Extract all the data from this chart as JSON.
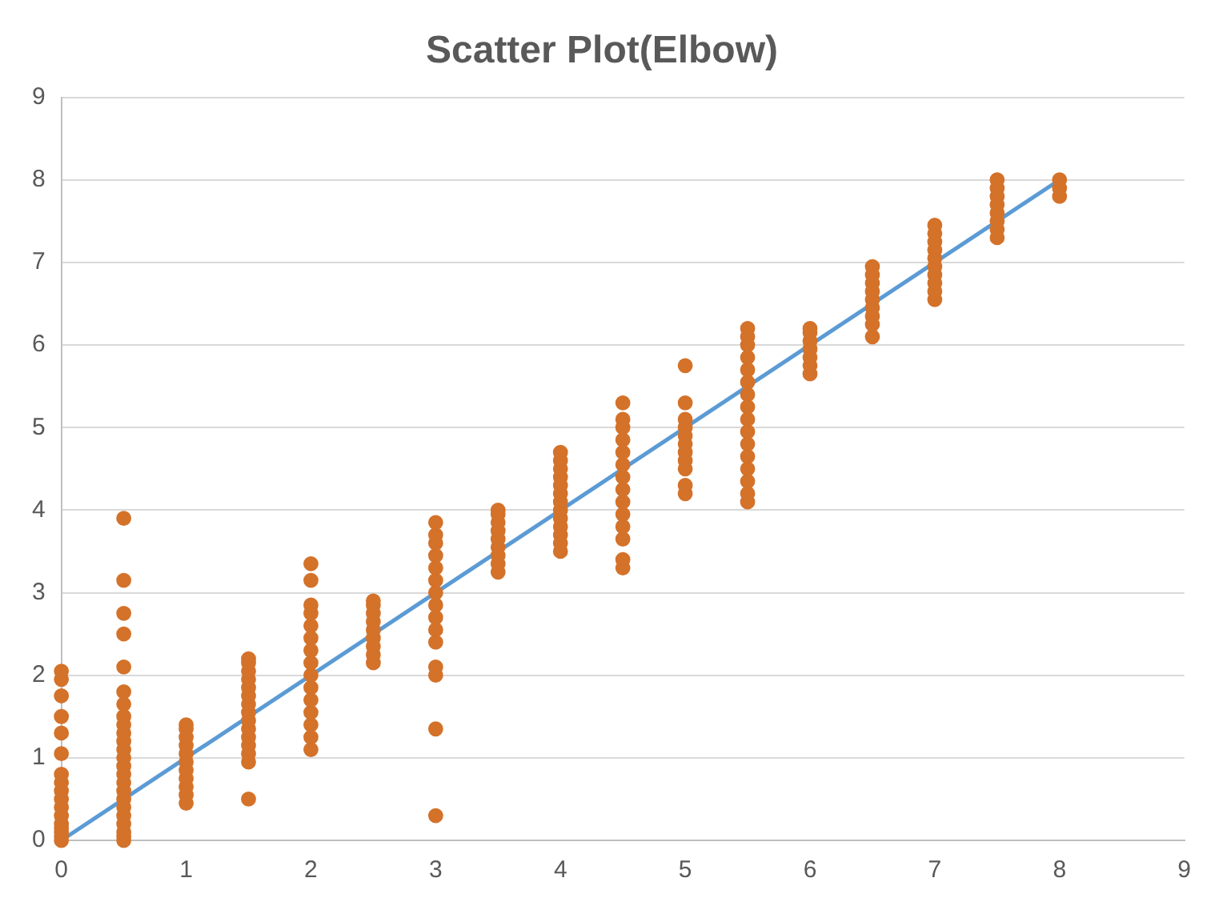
{
  "chart_data": {
    "type": "scatter",
    "title": "Scatter Plot(Elbow)",
    "xlim": [
      0,
      9
    ],
    "xticks": [
      0,
      1,
      2,
      3,
      4,
      5,
      6,
      7,
      8,
      9
    ],
    "ylim": [
      0,
      9
    ],
    "yticks": [
      0,
      1,
      2,
      3,
      4,
      5,
      6,
      7,
      8,
      9
    ],
    "grid": "y",
    "legend": false,
    "series": [
      {
        "color": "#d4722a",
        "marker": "circle",
        "x": [
          0,
          0,
          0,
          0,
          0,
          0,
          0,
          0,
          0,
          0,
          0,
          0,
          0,
          0,
          0,
          0,
          0,
          0.5,
          0.5,
          0.5,
          0.5,
          0.5,
          0.5,
          0.5,
          0.5,
          0.5,
          0.5,
          0.5,
          0.5,
          0.5,
          0.5,
          0.5,
          0.5,
          0.5,
          0.5,
          0.5,
          0.5,
          0.5,
          0.5,
          0.5,
          0.5,
          1,
          1,
          1,
          1,
          1,
          1,
          1,
          1,
          1,
          1,
          1,
          1.5,
          1.5,
          1.5,
          1.5,
          1.5,
          1.5,
          1.5,
          1.5,
          1.5,
          1.5,
          1.5,
          1.5,
          1.5,
          1.5,
          1.5,
          2,
          2,
          2,
          2,
          2,
          2,
          2,
          2,
          2,
          2,
          2,
          2,
          2,
          2,
          2,
          2.5,
          2.5,
          2.5,
          2.5,
          2.5,
          2.5,
          2.5,
          2.5,
          2.5,
          3,
          3,
          3,
          3,
          3,
          3,
          3,
          3,
          3,
          3,
          3,
          3,
          3,
          3,
          3,
          3.5,
          3.5,
          3.5,
          3.5,
          3.5,
          3.5,
          3.5,
          3.5,
          3.5,
          4,
          4,
          4,
          4,
          4,
          4,
          4,
          4,
          4,
          4,
          4,
          4,
          4,
          4.5,
          4.5,
          4.5,
          4.5,
          4.5,
          4.5,
          4.5,
          4.5,
          4.5,
          4.5,
          4.5,
          4.5,
          4.5,
          4.5,
          5,
          5,
          5,
          5,
          5,
          5,
          5,
          5,
          5,
          5,
          5,
          5.5,
          5.5,
          5.5,
          5.5,
          5.5,
          5.5,
          5.5,
          5.5,
          5.5,
          5.5,
          5.5,
          5.5,
          5.5,
          5.5,
          5.5,
          5.5,
          6,
          6,
          6,
          6,
          6,
          6,
          6,
          6.5,
          6.5,
          6.5,
          6.5,
          6.5,
          6.5,
          6.5,
          6.5,
          6.5,
          7,
          7,
          7,
          7,
          7,
          7,
          7,
          7,
          7,
          7,
          7.5,
          7.5,
          7.5,
          7.5,
          7.5,
          7.5,
          7.5,
          7.5,
          8,
          8,
          8
        ],
        "values": [
          0,
          0.05,
          0.1,
          0.15,
          0.2,
          0.3,
          0.4,
          0.5,
          0.6,
          0.7,
          0.8,
          1.05,
          1.3,
          1.5,
          1.75,
          1.95,
          2.05,
          0,
          0.05,
          0.1,
          0.2,
          0.3,
          0.4,
          0.5,
          0.6,
          0.7,
          0.8,
          0.9,
          1.0,
          1.1,
          1.2,
          1.3,
          1.4,
          1.5,
          1.65,
          1.8,
          2.1,
          2.5,
          2.75,
          3.15,
          3.9,
          0.45,
          0.55,
          0.65,
          0.75,
          0.85,
          0.95,
          1.05,
          1.15,
          1.25,
          1.35,
          1.4,
          0.5,
          0.95,
          1.05,
          1.15,
          1.25,
          1.35,
          1.45,
          1.55,
          1.65,
          1.75,
          1.85,
          1.95,
          2.05,
          2.15,
          2.2,
          1.1,
          1.25,
          1.4,
          1.55,
          1.7,
          1.85,
          2.0,
          2.15,
          2.3,
          2.45,
          2.6,
          2.75,
          2.85,
          3.15,
          3.35,
          2.15,
          2.25,
          2.35,
          2.45,
          2.55,
          2.65,
          2.75,
          2.85,
          2.9,
          0.3,
          1.35,
          2.0,
          2.1,
          2.4,
          2.55,
          2.7,
          2.85,
          3.0,
          3.15,
          3.3,
          3.45,
          3.6,
          3.7,
          3.85,
          3.25,
          3.35,
          3.45,
          3.55,
          3.65,
          3.75,
          3.85,
          3.95,
          4.0,
          3.5,
          3.6,
          3.7,
          3.8,
          3.9,
          4.0,
          4.1,
          4.2,
          4.3,
          4.4,
          4.5,
          4.6,
          4.7,
          3.3,
          3.4,
          3.65,
          3.8,
          3.95,
          4.1,
          4.25,
          4.4,
          4.55,
          4.7,
          4.85,
          5.0,
          5.1,
          5.3,
          4.2,
          4.3,
          4.5,
          4.6,
          4.7,
          4.8,
          4.9,
          5.0,
          5.1,
          5.3,
          5.75,
          4.1,
          4.2,
          4.35,
          4.5,
          4.65,
          4.8,
          4.95,
          5.1,
          5.25,
          5.4,
          5.55,
          5.7,
          5.85,
          6.0,
          6.1,
          6.2,
          5.65,
          5.75,
          5.85,
          5.95,
          6.05,
          6.15,
          6.2,
          6.1,
          6.25,
          6.35,
          6.45,
          6.55,
          6.65,
          6.75,
          6.85,
          6.95,
          6.55,
          6.65,
          6.75,
          6.85,
          6.95,
          7.05,
          7.15,
          7.25,
          7.35,
          7.45,
          7.3,
          7.4,
          7.5,
          7.6,
          7.7,
          7.8,
          7.9,
          8.0,
          7.8,
          7.9,
          8.0
        ]
      },
      {
        "type": "line",
        "color": "#5b9bd5",
        "x": [
          0,
          8
        ],
        "values": [
          0,
          8
        ]
      }
    ]
  }
}
